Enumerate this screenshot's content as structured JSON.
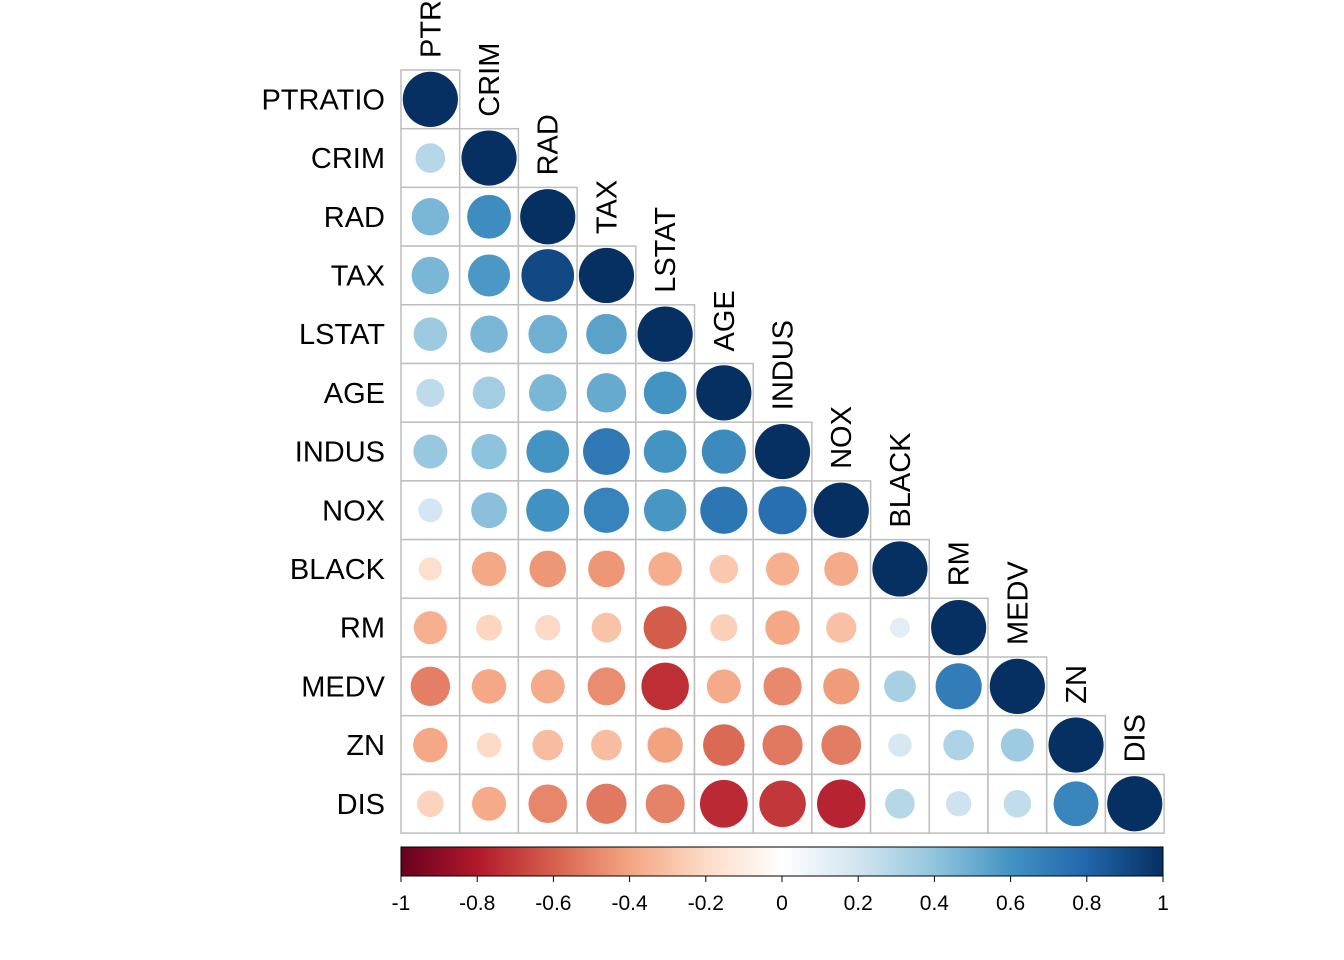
{
  "chart_data": {
    "type": "heatmap",
    "variables": [
      "PTRATIO",
      "CRIM",
      "RAD",
      "TAX",
      "LSTAT",
      "AGE",
      "INDUS",
      "NOX",
      "BLACK",
      "RM",
      "MEDV",
      "ZN",
      "DIS"
    ],
    "matrix": [
      [
        1.0,
        0.29,
        0.46,
        0.46,
        0.37,
        0.26,
        0.38,
        0.19,
        -0.18,
        -0.36,
        -0.51,
        -0.39,
        -0.23
      ],
      [
        0.29,
        1.0,
        0.63,
        0.58,
        0.46,
        0.35,
        0.41,
        0.42,
        -0.39,
        -0.22,
        -0.39,
        -0.2,
        -0.38
      ],
      [
        0.46,
        0.63,
        1.0,
        0.91,
        0.49,
        0.46,
        0.6,
        0.61,
        -0.44,
        -0.21,
        -0.38,
        -0.31,
        -0.49
      ],
      [
        0.46,
        0.58,
        0.91,
        1.0,
        0.54,
        0.51,
        0.72,
        0.67,
        -0.44,
        -0.29,
        -0.47,
        -0.31,
        -0.53
      ],
      [
        0.37,
        0.46,
        0.49,
        0.54,
        1.0,
        0.6,
        0.6,
        0.59,
        -0.37,
        -0.61,
        -0.74,
        -0.41,
        -0.5
      ],
      [
        0.26,
        0.35,
        0.46,
        0.51,
        0.6,
        1.0,
        0.64,
        0.73,
        -0.27,
        -0.24,
        -0.38,
        -0.57,
        -0.75
      ],
      [
        0.38,
        0.41,
        0.6,
        0.72,
        0.6,
        0.64,
        1.0,
        0.76,
        -0.36,
        -0.39,
        -0.48,
        -0.53,
        -0.71
      ],
      [
        0.19,
        0.42,
        0.61,
        0.67,
        0.59,
        0.73,
        0.76,
        1.0,
        -0.38,
        -0.3,
        -0.43,
        -0.52,
        -0.77
      ],
      [
        -0.18,
        -0.39,
        -0.44,
        -0.44,
        -0.37,
        -0.27,
        -0.36,
        -0.38,
        1.0,
        0.13,
        0.33,
        0.18,
        0.29
      ],
      [
        -0.36,
        -0.22,
        -0.21,
        -0.29,
        -0.61,
        -0.24,
        -0.39,
        -0.3,
        0.13,
        1.0,
        0.7,
        0.31,
        0.21
      ],
      [
        -0.51,
        -0.39,
        -0.38,
        -0.47,
        -0.74,
        -0.38,
        -0.48,
        -0.43,
        0.33,
        0.7,
        1.0,
        0.36,
        0.25
      ],
      [
        -0.39,
        -0.2,
        -0.31,
        -0.31,
        -0.41,
        -0.57,
        -0.53,
        -0.52,
        0.18,
        0.31,
        0.36,
        1.0,
        0.66
      ],
      [
        -0.23,
        -0.38,
        -0.49,
        -0.53,
        -0.5,
        -0.75,
        -0.71,
        -0.77,
        0.29,
        0.21,
        0.25,
        0.66,
        1.0
      ]
    ],
    "layout": "lower-triangle",
    "method": "circle",
    "colorbar": {
      "range": [
        -1,
        1
      ],
      "ticks": [
        "-1",
        "-0.8",
        "-0.6",
        "-0.4",
        "-0.2",
        "0",
        "0.2",
        "0.4",
        "0.6",
        "0.8",
        "1"
      ],
      "palette": [
        "#67001F",
        "#B2182B",
        "#D6604D",
        "#F4A582",
        "#FDDBC7",
        "#FFFFFF",
        "#D1E5F0",
        "#92C5DE",
        "#4393C3",
        "#2166AC",
        "#053061"
      ],
      "placement": "bottom"
    },
    "grid_color": "#BEBEBE"
  }
}
